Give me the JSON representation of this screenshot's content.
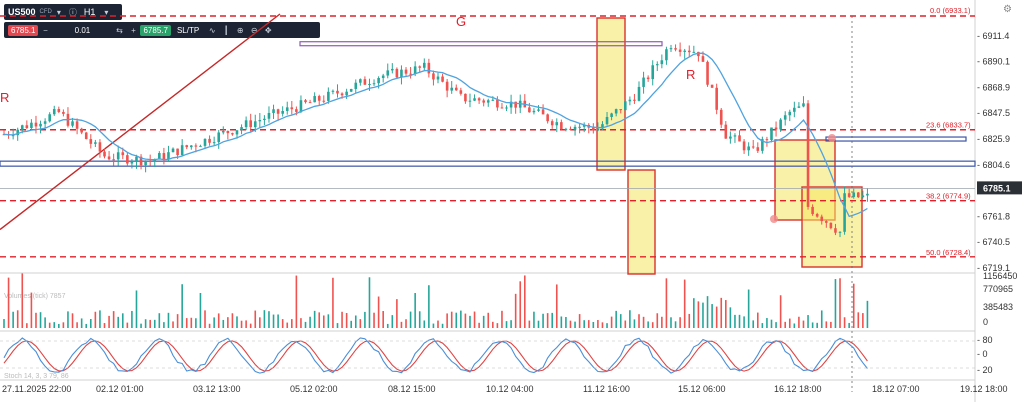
{
  "chart_data": {
    "type": "candlestick",
    "symbol": "US500",
    "symbol_tag": "CFD",
    "timeframe": "H1",
    "trade_panel": {
      "sell": "6785.1",
      "qty": "0.01",
      "sltp": "SL/TP",
      "buy": "6785.7"
    },
    "price_axis": {
      "ticks": [
        "6911.4",
        "6890.1",
        "6868.9",
        "6847.5",
        "6825.9",
        "6804.6",
        "6761.8",
        "6740.5",
        "6719.1"
      ],
      "top_tick_partial": "6933.1",
      "current_price": "6785.1"
    },
    "time_axis": [
      "27.11.2025 22:00",
      "02.12 01:00",
      "03.12 13:00",
      "05.12 02:00",
      "08.12 15:00",
      "10.12 04:00",
      "11.12 16:00",
      "15.12 06:00",
      "16.12 18:00",
      "18.12 07:00",
      "19.12 18:00"
    ],
    "volume_axis": [
      "1156450",
      "770965",
      "385483",
      "0"
    ],
    "stoch_axis": [
      "80",
      "0",
      "20"
    ],
    "annotations": {
      "G": "G",
      "R1": "R",
      "R2": "R",
      "fib1": "23.6 (6833.7)",
      "fib2": "38.2 (6774.9)",
      "fib3": "50.0 (6728.4)",
      "fib_top": "0.0 (6933.1)"
    },
    "indicator_labels": {
      "volume": "Volumes (tick) 7857",
      "stoch": "Stoch 14, 3, 3 79, 86"
    },
    "colors": {
      "up": "#26a69a",
      "down": "#ef5350",
      "ma": "#4fa3e0",
      "fib": "#e0202a",
      "box": "#f5e663",
      "box_border": "#d8342f",
      "hline": "#3b54a8",
      "purple": "#8e5bb5",
      "trend": "#c62828"
    }
  },
  "ui": {
    "settings_icon": "gear-icon"
  }
}
